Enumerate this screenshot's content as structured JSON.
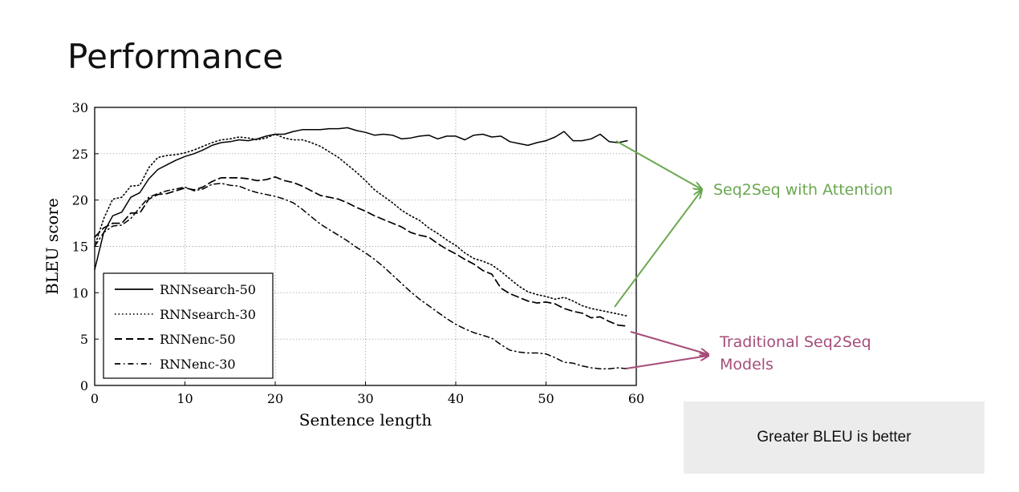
{
  "slide": {
    "title": "Performance",
    "note": "Greater BLEU is better"
  },
  "annotations": {
    "attention": {
      "text": "Seq2Seq with Attention",
      "color": "#6aa84f"
    },
    "traditional": {
      "lines": [
        "Traditional Seq2Seq",
        "Models"
      ],
      "color": "#a64d79"
    }
  },
  "chart_data": {
    "type": "line",
    "xlabel": "Sentence length",
    "ylabel": "BLEU score",
    "xlim": [
      0,
      60
    ],
    "ylim": [
      0,
      30
    ],
    "xticks": [
      0,
      10,
      20,
      30,
      40,
      50,
      60
    ],
    "yticks": [
      0,
      5,
      10,
      15,
      20,
      25,
      30
    ],
    "grid": true,
    "legend_position": "lower-left",
    "series": [
      {
        "name": "RNNsearch-50",
        "style": "solid",
        "x": [
          0,
          1,
          2,
          3,
          4,
          5,
          6,
          7,
          8,
          9,
          10,
          11,
          12,
          13,
          14,
          15,
          16,
          17,
          18,
          19,
          20,
          21,
          22,
          23,
          24,
          25,
          26,
          27,
          28,
          29,
          30,
          31,
          32,
          33,
          34,
          35,
          36,
          37,
          38,
          39,
          40,
          41,
          42,
          43,
          44,
          45,
          46,
          47,
          48,
          49,
          50,
          51,
          52,
          53,
          54,
          55,
          56,
          57,
          58,
          59
        ],
        "y": [
          12.5,
          16.5,
          18.3,
          18.7,
          20.3,
          20.8,
          22.3,
          23.3,
          23.8,
          24.3,
          24.7,
          25.0,
          25.4,
          25.9,
          26.2,
          26.3,
          26.5,
          26.4,
          26.6,
          26.9,
          27.1,
          27.1,
          27.4,
          27.6,
          27.6,
          27.6,
          27.7,
          27.7,
          27.8,
          27.5,
          27.3,
          27.0,
          27.1,
          27.0,
          26.6,
          26.7,
          26.9,
          27.0,
          26.6,
          26.9,
          26.9,
          26.5,
          27.0,
          27.1,
          26.8,
          26.9,
          26.3,
          26.1,
          25.9,
          26.2,
          26.4,
          26.8,
          27.4,
          26.4,
          26.4,
          26.6,
          27.1,
          26.3,
          26.2,
          26.4
        ]
      },
      {
        "name": "RNNsearch-30",
        "style": "dotted",
        "x": [
          0,
          1,
          2,
          3,
          4,
          5,
          6,
          7,
          8,
          9,
          10,
          11,
          12,
          13,
          14,
          15,
          16,
          17,
          18,
          19,
          20,
          21,
          22,
          23,
          24,
          25,
          26,
          27,
          28,
          29,
          30,
          31,
          32,
          33,
          34,
          35,
          36,
          37,
          38,
          39,
          40,
          41,
          42,
          43,
          44,
          45,
          46,
          47,
          48,
          49,
          50,
          51,
          52,
          53,
          54,
          55,
          56,
          57,
          58,
          59
        ],
        "y": [
          15.0,
          18.0,
          20.1,
          20.3,
          21.5,
          21.6,
          23.5,
          24.6,
          24.8,
          24.9,
          25.1,
          25.4,
          25.8,
          26.2,
          26.5,
          26.6,
          26.8,
          26.7,
          26.5,
          26.7,
          27.1,
          26.7,
          26.5,
          26.5,
          26.2,
          25.8,
          25.2,
          24.6,
          23.8,
          23.0,
          22.1,
          21.1,
          20.4,
          19.7,
          18.9,
          18.3,
          17.8,
          17.0,
          16.4,
          15.7,
          15.1,
          14.3,
          13.7,
          13.4,
          13.0,
          12.3,
          11.5,
          10.7,
          10.1,
          9.8,
          9.6,
          9.3,
          9.5,
          9.1,
          8.6,
          8.3,
          8.1,
          7.9,
          7.7,
          7.5
        ]
      },
      {
        "name": "RNNenc-50",
        "style": "dashed",
        "x": [
          0,
          1,
          2,
          3,
          4,
          5,
          6,
          7,
          8,
          9,
          10,
          11,
          12,
          13,
          14,
          15,
          16,
          17,
          18,
          19,
          20,
          21,
          22,
          23,
          24,
          25,
          26,
          27,
          28,
          29,
          30,
          31,
          32,
          33,
          34,
          35,
          36,
          37,
          38,
          39,
          40,
          41,
          42,
          43,
          44,
          45,
          46,
          47,
          48,
          49,
          50,
          51,
          52,
          53,
          54,
          55,
          56,
          57,
          58,
          59
        ],
        "y": [
          16.0,
          17.0,
          17.5,
          17.5,
          18.6,
          18.6,
          20.1,
          20.6,
          20.7,
          21.0,
          21.3,
          21.1,
          21.4,
          22.0,
          22.4,
          22.4,
          22.4,
          22.3,
          22.1,
          22.2,
          22.5,
          22.1,
          21.9,
          21.5,
          21.0,
          20.5,
          20.3,
          20.1,
          19.7,
          19.2,
          18.8,
          18.3,
          17.9,
          17.5,
          17.1,
          16.5,
          16.2,
          16.0,
          15.3,
          14.7,
          14.2,
          13.6,
          13.1,
          12.4,
          12.0,
          10.5,
          9.9,
          9.5,
          9.1,
          8.9,
          9.0,
          8.8,
          8.3,
          8.0,
          7.8,
          7.3,
          7.4,
          6.9,
          6.5,
          6.4
        ]
      },
      {
        "name": "RNNenc-30",
        "style": "dashdot",
        "x": [
          0,
          1,
          2,
          3,
          4,
          5,
          6,
          7,
          8,
          9,
          10,
          11,
          12,
          13,
          14,
          15,
          16,
          17,
          18,
          19,
          20,
          21,
          22,
          23,
          24,
          25,
          26,
          27,
          28,
          29,
          30,
          31,
          32,
          33,
          34,
          35,
          36,
          37,
          38,
          39,
          40,
          41,
          42,
          43,
          44,
          45,
          46,
          47,
          48,
          49,
          50,
          51,
          52,
          53,
          54,
          55,
          56,
          57,
          58,
          59
        ],
        "y": [
          15.0,
          16.5,
          17.2,
          17.3,
          18.0,
          19.2,
          20.3,
          20.7,
          21.0,
          21.2,
          21.4,
          21.0,
          21.2,
          21.7,
          21.8,
          21.6,
          21.5,
          21.1,
          20.8,
          20.6,
          20.4,
          20.1,
          19.7,
          19.0,
          18.2,
          17.4,
          16.8,
          16.2,
          15.6,
          14.9,
          14.3,
          13.6,
          12.8,
          11.9,
          11.0,
          10.1,
          9.3,
          8.6,
          7.9,
          7.2,
          6.6,
          6.1,
          5.7,
          5.4,
          5.1,
          4.4,
          3.8,
          3.6,
          3.5,
          3.5,
          3.4,
          3.0,
          2.5,
          2.4,
          2.1,
          1.9,
          1.8,
          1.8,
          1.9,
          1.8
        ]
      }
    ]
  }
}
